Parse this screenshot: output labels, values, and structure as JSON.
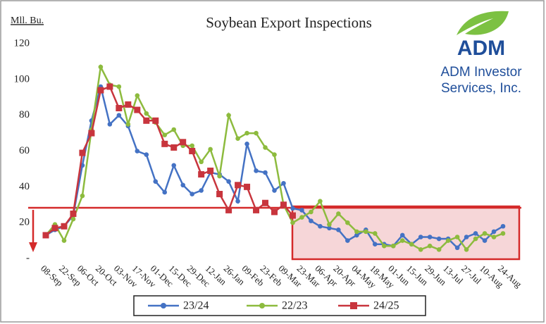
{
  "chart_data": {
    "type": "line",
    "title": "Soybean Export Inspections",
    "y_label": "Mll. Bu.",
    "categories": [
      "08-Sep",
      null,
      "22-Sep",
      null,
      "06-Oct",
      null,
      "20-Oct",
      null,
      "03-Nov",
      null,
      "17-Nov",
      null,
      "01-Dec",
      null,
      "15-Dec",
      null,
      "29-Dec",
      null,
      "12-Jan",
      null,
      "26-Jan",
      null,
      "09-Feb",
      null,
      "23-Feb",
      null,
      "09-Mar",
      null,
      "23-Mar",
      null,
      "06-Apr",
      null,
      "20-Apr",
      null,
      "04-May",
      null,
      "18-May",
      null,
      "01-Jun",
      null,
      "15-Jun",
      null,
      "29-Jun",
      null,
      "13-Jul",
      null,
      "27-Jul",
      null,
      "10-Aug",
      null,
      "24-Aug"
    ],
    "series": [
      {
        "name": "23/24",
        "color": "#4472c4",
        "marker": "circle",
        "values": [
          13,
          16,
          18,
          24,
          52,
          77,
          96,
          75,
          80,
          74,
          60,
          58,
          43,
          37,
          52,
          41,
          36,
          38,
          48,
          47,
          43,
          32,
          64,
          49,
          48,
          38,
          42,
          28,
          27,
          21,
          18,
          17,
          16,
          10,
          13,
          16,
          8,
          8,
          7,
          13,
          8,
          12,
          12,
          11,
          11,
          6,
          12,
          14,
          10,
          15,
          18
        ]
      },
      {
        "name": "22/23",
        "color": "#8dbb3e",
        "marker": "circle",
        "values": [
          13,
          19,
          10,
          22,
          35,
          72,
          107,
          97,
          96,
          75,
          91,
          81,
          76,
          69,
          72,
          63,
          63,
          54,
          61,
          46,
          80,
          67,
          70,
          70,
          62,
          58,
          30,
          20,
          23,
          26,
          32,
          19,
          25,
          20,
          15,
          15,
          14,
          7,
          7,
          10,
          8,
          5,
          7,
          5,
          10,
          12,
          5,
          11,
          14,
          12,
          14
        ]
      },
      {
        "name": "24/25",
        "color": "#c8353d",
        "marker": "square",
        "values": [
          13,
          17,
          18,
          25,
          59,
          70,
          94,
          96,
          84,
          86,
          83,
          77,
          77,
          64,
          62,
          65,
          60,
          47,
          49,
          36,
          27,
          41,
          40,
          27,
          31,
          26,
          30,
          24,
          null,
          null,
          null,
          null,
          null,
          null,
          null,
          null,
          null,
          null,
          null,
          null,
          null,
          null,
          null,
          null,
          null,
          null,
          null,
          null,
          null,
          null,
          null
        ]
      }
    ],
    "ylim": [
      0,
      120
    ],
    "yticks": [
      {
        "value": 0,
        "label": "-"
      },
      20,
      40,
      60,
      80,
      100,
      120
    ],
    "grid": false
  },
  "logo": {
    "name": "ADM",
    "lines": [
      "ADM Investor",
      "Services, Inc."
    ]
  }
}
